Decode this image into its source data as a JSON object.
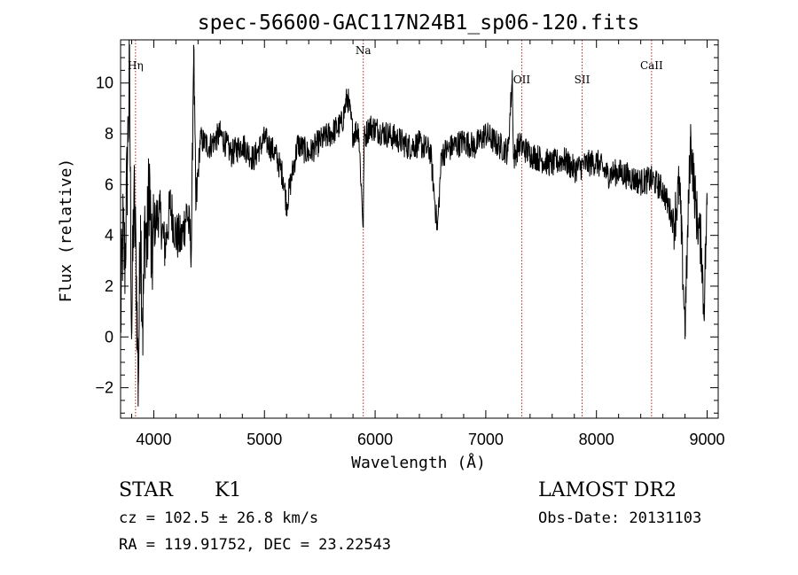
{
  "chart_data": {
    "type": "line",
    "title": "spec-56600-GAC117N24B1_sp06-120.fits",
    "xlabel": "Wavelength (Å)",
    "ylabel": "Flux (relative)",
    "xlim": [
      3700,
      9100
    ],
    "ylim": [
      -3.2,
      11.7
    ],
    "xticks": [
      4000,
      5000,
      6000,
      7000,
      8000,
      9000
    ],
    "yticks": [
      -2,
      0,
      2,
      4,
      6,
      8,
      10
    ],
    "series": [
      {
        "x": [
          3700,
          3720,
          3740,
          3760,
          3780,
          3800,
          3820,
          3840,
          3860,
          3880,
          3900,
          3920,
          3940,
          3960,
          3980,
          4000,
          4050,
          4100,
          4150,
          4200,
          4250,
          4300,
          4340,
          4360,
          4380,
          4420,
          4500,
          4600,
          4700,
          4800,
          4900,
          5000,
          5100,
          5170,
          5200,
          5300,
          5400,
          5500,
          5600,
          5700,
          5750,
          5800,
          5850,
          5893,
          5900,
          5950,
          6000,
          6100,
          6200,
          6300,
          6400,
          6500,
          6563,
          6600,
          6700,
          6800,
          6900,
          7000,
          7100,
          7200,
          7240,
          7250,
          7300,
          7400,
          7500,
          7600,
          7700,
          7800,
          7900,
          8000,
          8100,
          8200,
          8300,
          8400,
          8500,
          8600,
          8700,
          8750,
          8800,
          8850,
          8900,
          8950,
          8970,
          9000
        ],
        "values": [
          0.5,
          4.0,
          3.0,
          6.5,
          10.4,
          0.2,
          5.5,
          3.0,
          -1.9,
          4.8,
          0.3,
          4.5,
          3.5,
          6.4,
          2.5,
          4.3,
          5.0,
          3.5,
          5.2,
          4.0,
          3.8,
          5.0,
          3.5,
          11.5,
          5.0,
          7.8,
          7.5,
          8.0,
          7.2,
          7.6,
          7.0,
          7.8,
          7.2,
          6.3,
          5.2,
          7.6,
          7.2,
          7.7,
          8.0,
          8.4,
          9.5,
          8.0,
          8.2,
          4.3,
          7.8,
          8.3,
          8.2,
          8.0,
          7.8,
          7.5,
          7.6,
          7.3,
          4.2,
          7.2,
          7.5,
          7.7,
          7.5,
          8.0,
          7.6,
          7.3,
          10.3,
          7.0,
          7.6,
          7.2,
          7.0,
          6.8,
          7.0,
          6.6,
          6.8,
          6.9,
          6.4,
          6.5,
          6.3,
          6.1,
          6.2,
          5.8,
          4.5,
          6.0,
          0.4,
          7.8,
          5.0,
          3.5,
          1.0,
          5.2
        ]
      }
    ],
    "lines": [
      {
        "label": "Hη",
        "x": 3835
      },
      {
        "label": "Na",
        "x": 5893
      },
      {
        "label": "OII",
        "x": 7325
      },
      {
        "label": "SII",
        "x": 7870
      },
      {
        "label": "CaII",
        "x": 8498
      }
    ],
    "grid": false,
    "legend": "none"
  },
  "info": {
    "class": "STAR",
    "subclass": "K1",
    "survey": "LAMOST DR2",
    "cz": "cz = 102.5 ± 26.8 km/s",
    "obs_date": "Obs-Date: 20131103",
    "coords": "RA = 119.91752, DEC =  23.22543"
  },
  "colors": {
    "spectrum": "#000000",
    "line_markers": "#b22222"
  }
}
